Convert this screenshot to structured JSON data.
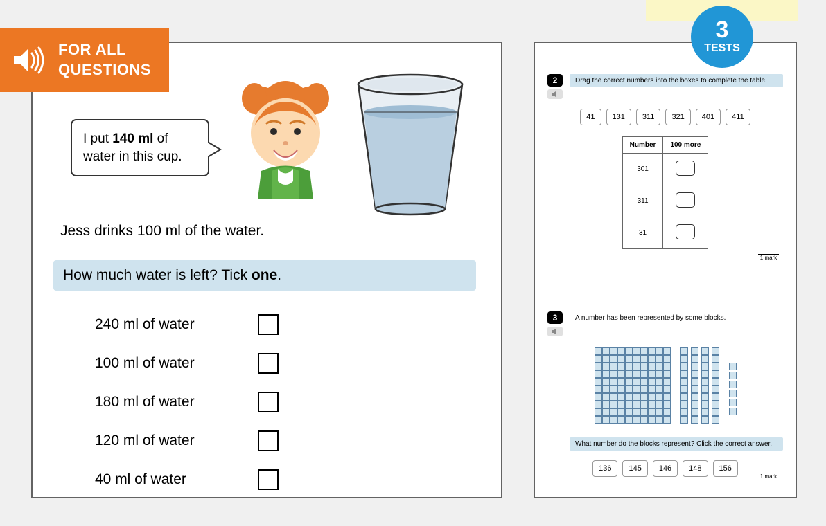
{
  "banner": {
    "line1": "FOR ALL",
    "line2": "QUESTIONS"
  },
  "badge": {
    "number": "3",
    "label": "TESTS"
  },
  "colors": {
    "orange": "#ec7723",
    "badge_blue": "#2196d6",
    "panel_border": "#636363",
    "highlight_blue": "#cfe3ee",
    "yellow_strip": "#fbf7c6",
    "page_bg": "#f0f0f0",
    "block_fill": "#cfe3ee",
    "block_border": "#5a82a5"
  },
  "left": {
    "speech_pre": "I put ",
    "speech_bold": "140 ml",
    "speech_post": " of water in this cup.",
    "statement": "Jess drinks 100 ml of the water.",
    "question_pre": "How much water is left? Tick ",
    "question_bold": "one",
    "question_post": ".",
    "options": [
      "240 ml of water",
      "100 ml of water",
      "180 ml of water",
      "120 ml of water",
      "40 ml of water"
    ]
  },
  "right": {
    "q2": {
      "num": "2",
      "prompt": "Drag the correct numbers into the boxes to complete the table.",
      "chips": [
        "41",
        "131",
        "311",
        "321",
        "401",
        "411"
      ],
      "table": {
        "headers": [
          "Number",
          "100 more"
        ],
        "rows": [
          {
            "number": "301"
          },
          {
            "number": "311"
          },
          {
            "number": "31"
          }
        ]
      },
      "mark": "1 mark"
    },
    "q3": {
      "num": "3",
      "prompt": "A number has been represented by some blocks.",
      "subprompt": "What number do the blocks represent? Click the correct answer.",
      "chips": [
        "136",
        "145",
        "146",
        "148",
        "156"
      ],
      "blocks": {
        "hundreds": 1,
        "tens": 4,
        "ones": 6
      },
      "mark": "1 mark"
    }
  }
}
